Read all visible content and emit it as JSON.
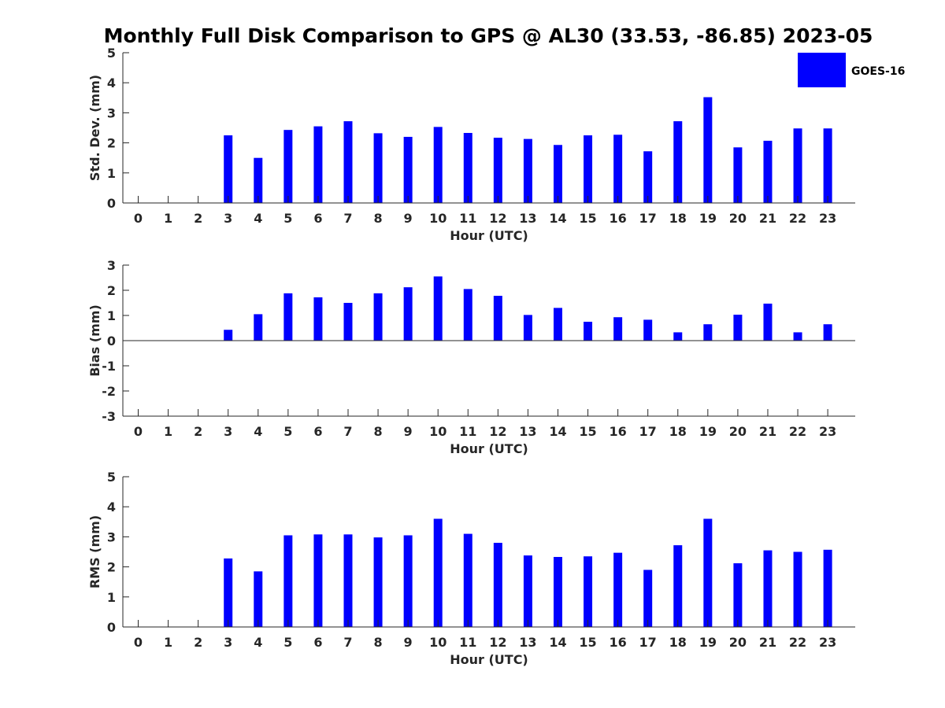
{
  "chart_data": {
    "type": "bar",
    "title": "Monthly Full Disk Comparison to GPS @ AL30 (33.53, -86.85) 2023-05",
    "legend": {
      "entries": [
        "GOES-16"
      ],
      "placement": "top-right"
    },
    "colors": {
      "bar": "#0000ff",
      "axis": "#262626"
    },
    "grid": false,
    "categories": [
      "0",
      "1",
      "2",
      "3",
      "4",
      "5",
      "6",
      "7",
      "8",
      "9",
      "10",
      "11",
      "12",
      "13",
      "14",
      "15",
      "16",
      "17",
      "18",
      "19",
      "20",
      "21",
      "22",
      "23"
    ],
    "panels": [
      {
        "xlabel": "Hour (UTC)",
        "ylabel": "Std. Dev. (mm)",
        "ylim": [
          0,
          5
        ],
        "yticks": [
          "0",
          "1",
          "2",
          "3",
          "4",
          "5"
        ],
        "series": [
          {
            "name": "GOES-16",
            "values": [
              null,
              null,
              null,
              2.25,
              1.5,
              2.43,
              2.55,
              2.72,
              2.32,
              2.2,
              2.53,
              2.33,
              2.17,
              2.13,
              1.93,
              2.25,
              2.27,
              1.72,
              2.72,
              3.52,
              1.85,
              2.07,
              2.48,
              2.48
            ]
          }
        ]
      },
      {
        "xlabel": "Hour (UTC)",
        "ylabel": "Bias (mm)",
        "ylim": [
          -3,
          3
        ],
        "yticks": [
          "-3",
          "-2",
          "-1",
          "0",
          "1",
          "2",
          "3"
        ],
        "series": [
          {
            "name": "GOES-16",
            "values": [
              null,
              null,
              null,
              0.43,
              1.05,
              1.88,
              1.72,
              1.5,
              1.88,
              2.12,
              2.55,
              2.05,
              1.78,
              1.02,
              1.3,
              0.75,
              0.93,
              0.83,
              0.33,
              0.65,
              1.03,
              1.47,
              0.33,
              0.65
            ]
          }
        ]
      },
      {
        "xlabel": "Hour (UTC)",
        "ylabel": "RMS (mm)",
        "ylim": [
          0,
          5
        ],
        "yticks": [
          "0",
          "1",
          "2",
          "3",
          "4",
          "5"
        ],
        "series": [
          {
            "name": "GOES-16",
            "values": [
              null,
              null,
              null,
              2.28,
              1.85,
              3.05,
              3.08,
              3.08,
              2.98,
              3.05,
              3.6,
              3.1,
              2.8,
              2.38,
              2.33,
              2.35,
              2.47,
              1.9,
              2.72,
              3.6,
              2.12,
              2.55,
              2.5,
              2.57
            ]
          }
        ]
      }
    ]
  }
}
